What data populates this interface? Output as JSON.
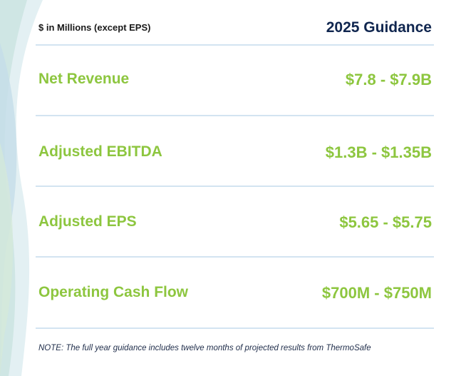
{
  "header": {
    "units_label": "$ in Millions (except EPS)",
    "guidance_title": "2025 Guidance"
  },
  "rows": [
    {
      "label": "Net Revenue",
      "value": "$7.8 - $7.9B"
    },
    {
      "label": "Adjusted EBITDA",
      "value": "$1.3B - $1.35B"
    },
    {
      "label": "Adjusted EPS",
      "value": "$5.65 - $5.75"
    },
    {
      "label": "Operating Cash Flow",
      "value": "$700M - $750M"
    }
  ],
  "note": "NOTE: The full year guidance includes twelve months of projected results from ThermoSafe",
  "colors": {
    "label_green": "#8dc63f",
    "header_navy": "#10264f",
    "divider": "#d3e4f1"
  }
}
